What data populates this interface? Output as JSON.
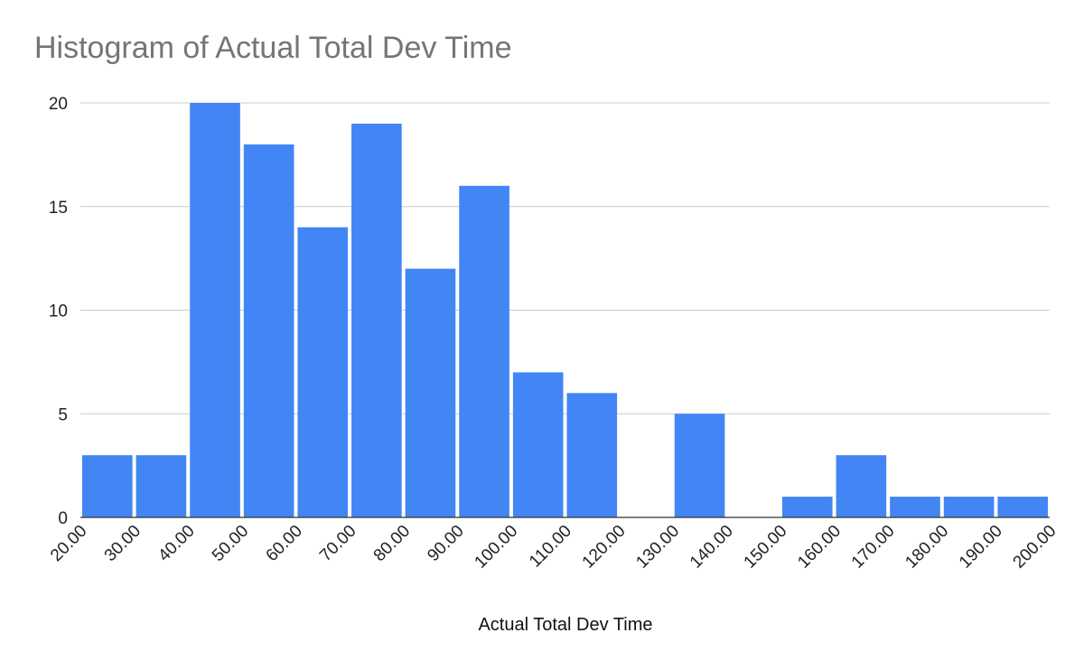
{
  "chart_data": {
    "type": "bar",
    "title": "Histogram of Actual Total Dev Time",
    "xlabel": "Actual Total Dev Time",
    "ylabel": "",
    "bin_edges": [
      "20.00",
      "30.00",
      "40.00",
      "50.00",
      "60.00",
      "70.00",
      "80.00",
      "90.00",
      "100.00",
      "110.00",
      "120.00",
      "130.00",
      "140.00",
      "150.00",
      "160.00",
      "170.00",
      "180.00",
      "190.00",
      "200.00"
    ],
    "values": [
      3,
      3,
      20,
      18,
      14,
      19,
      12,
      16,
      7,
      6,
      0,
      5,
      0,
      1,
      3,
      1,
      1,
      1
    ],
    "ylim": [
      0,
      20
    ],
    "yticks": [
      0,
      5,
      10,
      15,
      20
    ],
    "grid": true,
    "legend": "none",
    "bar_color": "#4285f4",
    "title_color": "#757575",
    "gridline_color": "#cccccc"
  }
}
